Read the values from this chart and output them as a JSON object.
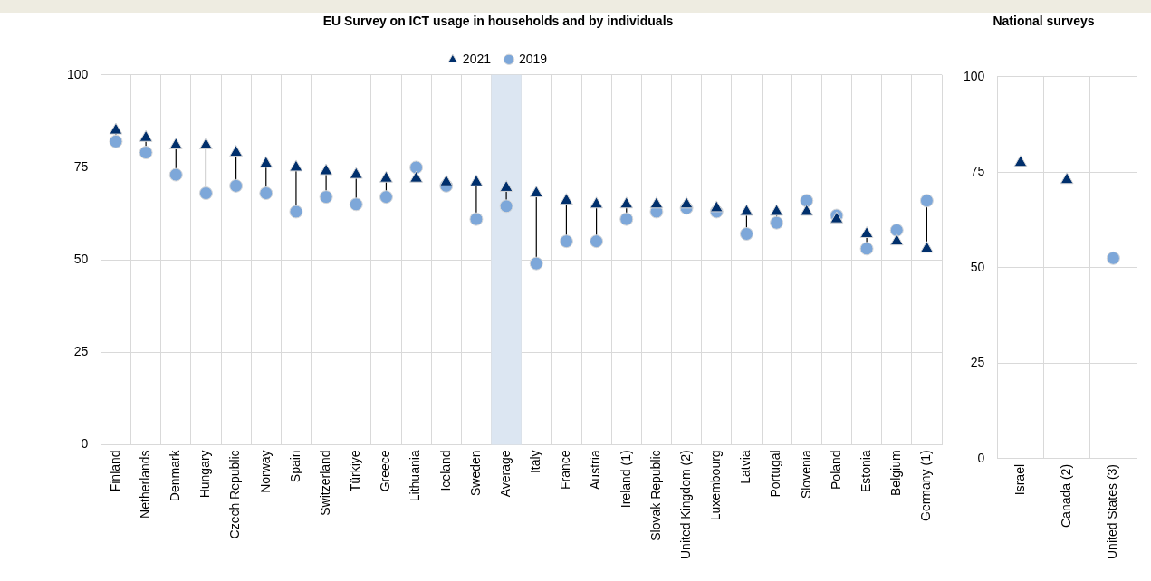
{
  "chart_data": [
    {
      "type": "scatter",
      "title": "EU Survey on ICT usage in households and by individuals",
      "categories": [
        "Finland",
        "Netherlands",
        "Denmark",
        "Hungary",
        "Czech Republic",
        "Norway",
        "Spain",
        "Switzerland",
        "Türkiye",
        "Greece",
        "Lithuania",
        "Iceland",
        "Sweden",
        "Average",
        "Italy",
        "France",
        "Austria",
        "Ireland (1)",
        "Slovak Republic",
        "United Kingdom (2)",
        "Luxembourg",
        "Latvia",
        "Portugal",
        "Slovenia",
        "Poland",
        "Estonia",
        "Belgium",
        "Germany (1)"
      ],
      "series": [
        {
          "name": "2019",
          "color": "#7da7d9",
          "marker": "circle",
          "values": [
            82,
            79,
            73,
            68,
            70,
            68,
            63,
            67,
            65,
            67,
            75,
            70,
            61,
            64.5,
            49,
            55,
            55,
            61,
            63,
            64,
            63,
            57,
            60,
            66,
            62,
            53,
            58,
            66
          ]
        },
        {
          "name": "2021",
          "color": "#002f6c",
          "marker": "triangle",
          "values": [
            85,
            83,
            81,
            81,
            79,
            76,
            75,
            74,
            73,
            72,
            72,
            71,
            71,
            69.5,
            68,
            66,
            65,
            65,
            65,
            65,
            64,
            63,
            63,
            63,
            61,
            57,
            55,
            53
          ]
        }
      ],
      "bands": [
        {
          "axis": "x",
          "from": "Average",
          "to": "Average",
          "color": "#dce6f2"
        }
      ],
      "ylim": [
        0,
        100
      ],
      "yticks": [
        0,
        25,
        50,
        75,
        100
      ],
      "grid": true,
      "legend": "top"
    },
    {
      "type": "scatter",
      "title": "National surveys",
      "categories": [
        "Israel",
        "Canada (2)",
        "United States (3)"
      ],
      "series": [
        {
          "color": "#7da7d9",
          "marker": "circle",
          "values": [
            null,
            null,
            52.5
          ]
        },
        {
          "color": "#002f6c",
          "marker": "triangle",
          "values": [
            77.5,
            73,
            null
          ]
        }
      ],
      "ylim": [
        0,
        100
      ],
      "yticks": [
        0,
        25,
        50,
        75,
        100
      ],
      "grid": true
    }
  ]
}
